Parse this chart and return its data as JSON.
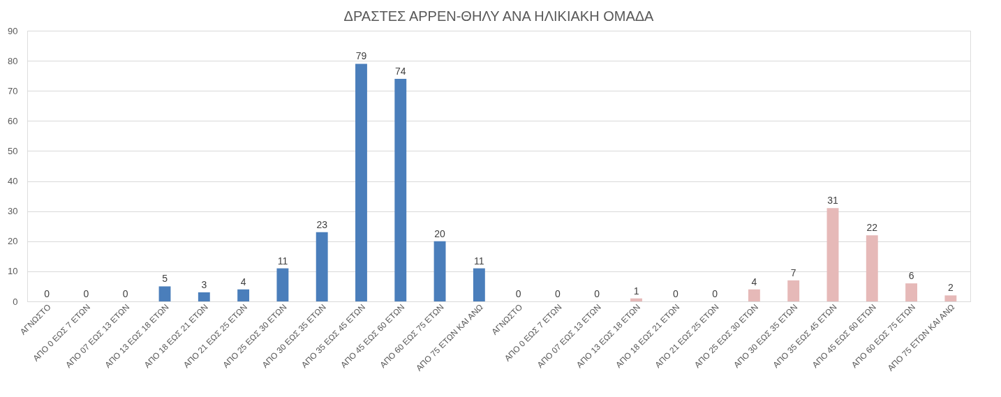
{
  "chart_data": {
    "type": "bar",
    "title": "ΔΡΑΣΤΕΣ ΑΡΡΕΝ-ΘΗΛΥ ΑΝΑ ΗΛΙΚΙΑΚΗ ΟΜΑΔΑ",
    "categories": [
      "ΑΓΝΩΣΤΟ",
      "ΑΠΟ 0 ΕΩΣ 7 ΕΤΩΝ",
      "ΑΠΟ 07 ΕΩΣ 13 ΕΤΩΝ",
      "ΑΠΟ 13 ΕΩΣ 18 ΕΤΩΝ",
      "ΑΠΟ 18 ΕΩΣ 21 ΕΤΩΝ",
      "ΑΠΟ 21 ΕΩΣ 25 ΕΤΩΝ",
      "ΑΠΟ 25 ΕΩΣ 30 ΕΤΩΝ",
      "ΑΠΟ 30 ΕΩΣ 35 ΕΤΩΝ",
      "ΑΠΟ 35 ΕΩΣ 45 ΕΤΩΝ",
      "ΑΠΟ 45 ΕΩΣ 60 ΕΤΩΝ",
      "ΑΠΟ 60 ΕΩΣ 75 ΕΤΩΝ",
      "ΑΠΟ 75 ΕΤΩΝ ΚΑΙ ΑΝΩ",
      "ΑΓΝΩΣΤΟ",
      "ΑΠΟ 0 ΕΩΣ 7 ΕΤΩΝ",
      "ΑΠΟ 07 ΕΩΣ 13 ΕΤΩΝ",
      "ΑΠΟ 13 ΕΩΣ 18 ΕΤΩΝ",
      "ΑΠΟ 18 ΕΩΣ 21 ΕΤΩΝ",
      "ΑΠΟ 21 ΕΩΣ 25 ΕΤΩΝ",
      "ΑΠΟ 25 ΕΩΣ 30 ΕΤΩΝ",
      "ΑΠΟ 30 ΕΩΣ 35 ΕΤΩΝ",
      "ΑΠΟ 35 ΕΩΣ 45 ΕΤΩΝ",
      "ΑΠΟ 45 ΕΩΣ 60 ΕΤΩΝ",
      "ΑΠΟ 60 ΕΩΣ 75 ΕΤΩΝ",
      "ΑΠΟ 75 ΕΤΩΝ ΚΑΙ ΑΝΩ"
    ],
    "values": [
      0,
      0,
      0,
      5,
      3,
      4,
      11,
      23,
      79,
      74,
      20,
      11,
      0,
      0,
      0,
      1,
      0,
      0,
      4,
      7,
      31,
      22,
      6,
      2
    ],
    "colors": [
      "#4a7ebb",
      "#4a7ebb",
      "#4a7ebb",
      "#4a7ebb",
      "#4a7ebb",
      "#4a7ebb",
      "#4a7ebb",
      "#4a7ebb",
      "#4a7ebb",
      "#4a7ebb",
      "#4a7ebb",
      "#4a7ebb",
      "#e6b9b8",
      "#e6b9b8",
      "#e6b9b8",
      "#e6b9b8",
      "#e6b9b8",
      "#e6b9b8",
      "#e6b9b8",
      "#e6b9b8",
      "#e6b9b8",
      "#e6b9b8",
      "#e6b9b8",
      "#e6b9b8"
    ],
    "ylim": [
      0,
      90
    ],
    "yticks": [
      0,
      10,
      20,
      30,
      40,
      50,
      60,
      70,
      80,
      90
    ],
    "grid": "y",
    "data_labels": true
  }
}
